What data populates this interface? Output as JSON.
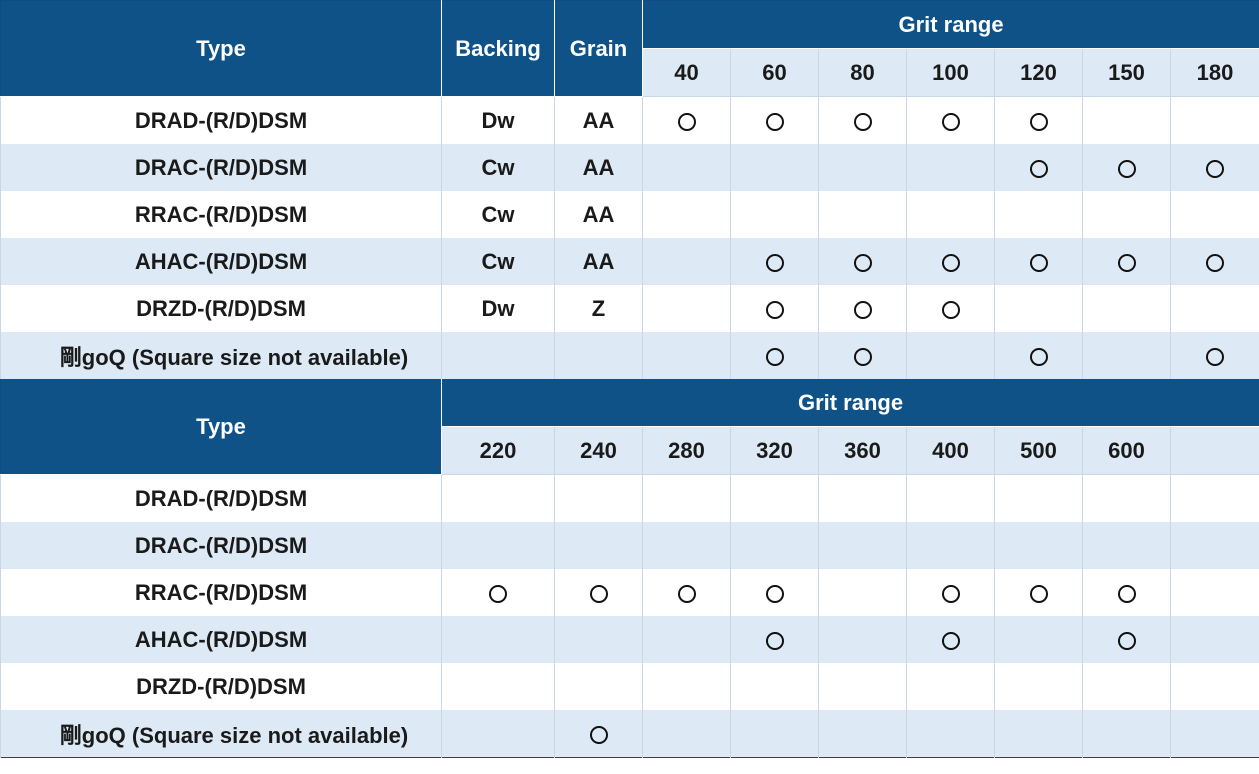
{
  "table1": {
    "header": {
      "type": "Type",
      "backing": "Backing",
      "grain": "Grain",
      "grit_range": "Grit range",
      "grits": [
        "40",
        "60",
        "80",
        "100",
        "120",
        "150",
        "180"
      ]
    },
    "rows": [
      {
        "type": "DRAD-(R/D)DSM",
        "backing": "Dw",
        "grain": "AA",
        "marks": [
          "O",
          "O",
          "O",
          "O",
          "O",
          "",
          ""
        ]
      },
      {
        "type": "DRAC-(R/D)DSM",
        "backing": "Cw",
        "grain": "AA",
        "marks": [
          "",
          "",
          "",
          "",
          "O",
          "O",
          "O"
        ]
      },
      {
        "type": "RRAC-(R/D)DSM",
        "backing": "Cw",
        "grain": "AA",
        "marks": [
          "",
          "",
          "",
          "",
          "",
          "",
          ""
        ]
      },
      {
        "type": "AHAC-(R/D)DSM",
        "backing": "Cw",
        "grain": "AA",
        "marks": [
          "",
          "O",
          "O",
          "O",
          "O",
          "O",
          "O"
        ]
      },
      {
        "type": "DRZD-(R/D)DSM",
        "backing": "Dw",
        "grain": "Z",
        "marks": [
          "",
          "O",
          "O",
          "O",
          "",
          "",
          ""
        ]
      },
      {
        "type": "剛goQ (Square size not available)",
        "backing": "",
        "grain": "",
        "marks": [
          "",
          "O",
          "O",
          "",
          "O",
          "",
          "O"
        ]
      }
    ]
  },
  "table2": {
    "header": {
      "type": "Type",
      "grit_range": "Grit range",
      "grits": [
        "220",
        "240",
        "280",
        "320",
        "360",
        "400",
        "500",
        "600",
        ""
      ]
    },
    "rows": [
      {
        "type": "DRAD-(R/D)DSM",
        "marks": [
          "",
          "",
          "",
          "",
          "",
          "",
          "",
          "",
          ""
        ]
      },
      {
        "type": "DRAC-(R/D)DSM",
        "marks": [
          "",
          "",
          "",
          "",
          "",
          "",
          "",
          "",
          ""
        ]
      },
      {
        "type": "RRAC-(R/D)DSM",
        "marks": [
          "O",
          "O",
          "O",
          "O",
          "",
          "O",
          "O",
          "O",
          ""
        ]
      },
      {
        "type": "AHAC-(R/D)DSM",
        "marks": [
          "",
          "",
          "",
          "O",
          "",
          "O",
          "",
          "O",
          ""
        ]
      },
      {
        "type": "DRZD-(R/D)DSM",
        "marks": [
          "",
          "",
          "",
          "",
          "",
          "",
          "",
          "",
          ""
        ]
      },
      {
        "type": "剛goQ (Square size not available)",
        "marks": [
          "",
          "O",
          "",
          "",
          "",
          "",
          "",
          "",
          ""
        ]
      }
    ]
  }
}
